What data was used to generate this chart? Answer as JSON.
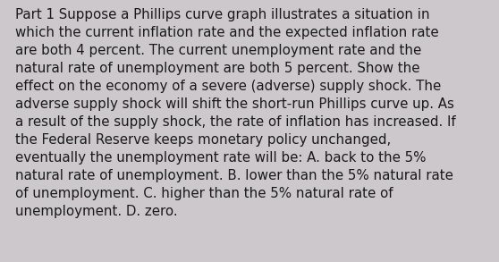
{
  "background_color": "#ccc8cc",
  "text_color": "#1a1a1a",
  "font_size": 10.8,
  "font_family": "DejaVu Sans",
  "lines": [
    "Part 1 Suppose a Phillips curve graph illustrates a situation in",
    "which the current inflation rate and the expected inflation rate",
    "are both 4 percent. The current unemployment rate and the",
    "natural rate of unemployment are both 5 percent. Show the",
    "effect on the economy of a severe (adverse) supply shock. The",
    "adverse supply shock will shift the short-run Phillips curve up. As",
    "a result of the supply shock, the rate of inflation has increased. If",
    "the Federal Reserve keeps monetary policy unchanged,",
    "eventually the unemployment rate will be: A. back to the 5%",
    "natural rate of unemployment. B. lower than the 5% natural rate",
    "of unemployment. C. higher than the 5% natural rate of",
    "unemployment. D. zero."
  ],
  "fig_width": 5.58,
  "fig_height": 2.93,
  "dpi": 100
}
